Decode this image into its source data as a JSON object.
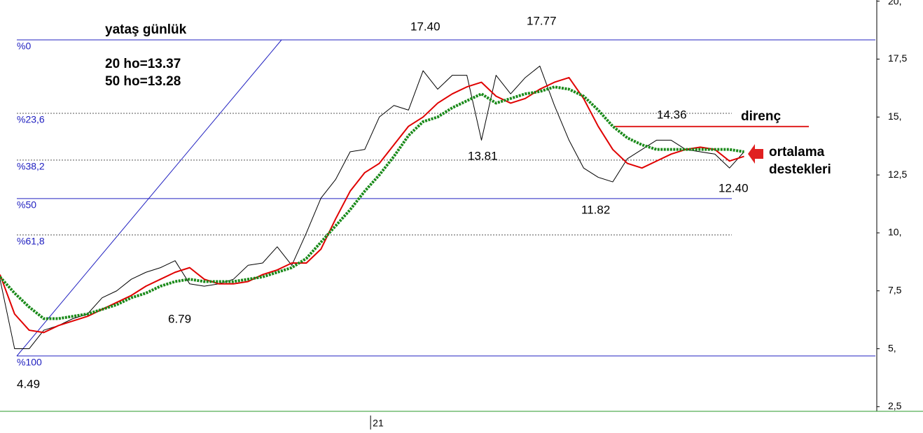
{
  "chart_data": {
    "type": "line",
    "x": [
      0,
      5,
      10,
      15,
      20,
      25,
      30,
      35,
      40,
      45,
      50,
      55,
      60,
      65,
      70,
      75,
      80,
      85,
      90,
      95,
      100,
      105,
      110,
      115,
      120,
      125,
      130,
      135,
      140,
      145,
      150,
      155,
      160,
      165,
      170,
      175,
      180,
      185,
      190,
      195,
      200,
      205,
      210,
      215,
      220,
      225,
      230,
      235,
      240,
      245,
      250,
      255
    ],
    "series": [
      {
        "color": "#000000",
        "values": [
          8.0,
          5.0,
          5.0,
          5.8,
          6.0,
          6.3,
          6.5,
          7.2,
          7.5,
          8.0,
          8.3,
          8.5,
          8.8,
          7.8,
          7.7,
          7.8,
          8.0,
          8.6,
          8.7,
          9.4,
          8.6,
          10.0,
          11.5,
          12.3,
          13.5,
          13.6,
          15.0,
          15.5,
          15.3,
          17.0,
          16.2,
          16.8,
          16.8,
          14.0,
          16.8,
          16.0,
          16.7,
          17.2,
          15.5,
          14.0,
          12.8,
          12.4,
          12.2,
          13.2,
          13.6,
          14.0,
          14.0,
          13.6,
          13.5,
          13.4,
          12.8,
          13.5
        ]
      },
      {
        "color": "#e00000",
        "values": [
          8.2,
          6.5,
          5.8,
          5.7,
          6.0,
          6.2,
          6.4,
          6.7,
          7.0,
          7.3,
          7.7,
          8.0,
          8.3,
          8.5,
          8.0,
          7.8,
          7.8,
          7.9,
          8.2,
          8.4,
          8.7,
          8.7,
          9.3,
          10.6,
          11.8,
          12.6,
          13.0,
          13.8,
          14.6,
          15.0,
          15.6,
          16.0,
          16.3,
          16.5,
          15.9,
          15.6,
          15.8,
          16.2,
          16.5,
          16.7,
          15.8,
          14.6,
          13.6,
          13.0,
          12.8,
          13.1,
          13.4,
          13.6,
          13.7,
          13.6,
          13.1,
          13.3
        ]
      },
      {
        "color": "#1a8a1a",
        "values": [
          8.1,
          7.4,
          6.8,
          6.3,
          6.3,
          6.4,
          6.5,
          6.7,
          6.9,
          7.2,
          7.4,
          7.7,
          7.9,
          8.0,
          7.9,
          7.9,
          7.9,
          8.0,
          8.1,
          8.3,
          8.5,
          8.9,
          9.6,
          10.3,
          11.0,
          11.8,
          12.5,
          13.3,
          14.2,
          14.8,
          15.0,
          15.4,
          15.7,
          16.0,
          15.6,
          15.8,
          16.0,
          16.1,
          16.3,
          16.2,
          15.9,
          15.3,
          14.6,
          14.1,
          13.8,
          13.6,
          13.6,
          13.6,
          13.6,
          13.6,
          13.6,
          13.5
        ]
      }
    ],
    "xlim": [
      0,
      300
    ],
    "xticks": [
      {
        "value": 127,
        "label": "21"
      }
    ],
    "ylim": [
      2.3,
      20.05
    ],
    "yticks": [
      {
        "value": 2.5,
        "label": "2,5"
      },
      {
        "value": 5,
        "label": "5,"
      },
      {
        "value": 7.5,
        "label": "7,5"
      },
      {
        "value": 10,
        "label": "10,"
      },
      {
        "value": 12.5,
        "label": "12,5"
      },
      {
        "value": 15,
        "label": "15,"
      },
      {
        "value": 17.5,
        "label": "17,5"
      },
      {
        "value": 20,
        "label": "20,"
      }
    ],
    "fib_levels": [
      {
        "value": 18.33,
        "label": "%0"
      },
      {
        "value": 15.16,
        "label": "%23,6"
      },
      {
        "value": 13.14,
        "label": "%38,2"
      },
      {
        "value": 11.48,
        "label": "%50"
      },
      {
        "value": 9.91,
        "label": "%61,8"
      },
      {
        "value": 4.69,
        "label": "%100"
      }
    ],
    "resistance_level": 14.59,
    "title": "yataş günlük",
    "notes": [
      "20 ho=13.37",
      "50 ho=13.28"
    ],
    "annotations": [
      "17.40",
      "17.77",
      "14.36",
      "direnç",
      "13.81",
      "ortalama",
      "destekleri",
      "12.40",
      "11.82",
      "6.79",
      "4.49"
    ]
  }
}
